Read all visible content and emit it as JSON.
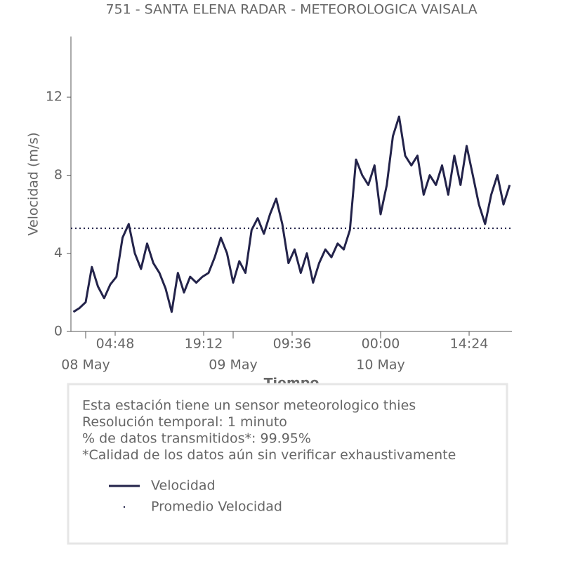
{
  "chart_data": {
    "type": "line",
    "title": "751 - SANTA ELENA RADAR - METEOROLOGICA VAISALA",
    "x_label": "Tiempo",
    "y_label": "Velocidad (m/s)",
    "x": [
      "07 May 22:00",
      "07 May 23:00",
      "08 May 00:00",
      "08 May 01:00",
      "08 May 02:00",
      "08 May 03:00",
      "08 May 04:00",
      "08 May 05:00",
      "08 May 06:00",
      "08 May 07:00",
      "08 May 08:00",
      "08 May 09:00",
      "08 May 10:00",
      "08 May 11:00",
      "08 May 12:00",
      "08 May 13:00",
      "08 May 14:00",
      "08 May 15:00",
      "08 May 16:00",
      "08 May 17:00",
      "08 May 18:00",
      "08 May 19:00",
      "08 May 20:00",
      "08 May 21:00",
      "08 May 22:00",
      "08 May 23:00",
      "09 May 00:00",
      "09 May 01:00",
      "09 May 02:00",
      "09 May 03:00",
      "09 May 04:00",
      "09 May 05:00",
      "09 May 06:00",
      "09 May 07:00",
      "09 May 08:00",
      "09 May 09:00",
      "09 May 10:00",
      "09 May 11:00",
      "09 May 12:00",
      "09 May 13:00",
      "09 May 14:00",
      "09 May 15:00",
      "09 May 16:00",
      "09 May 17:00",
      "09 May 18:00",
      "09 May 19:00",
      "09 May 20:00",
      "09 May 21:00",
      "09 May 22:00",
      "09 May 23:00",
      "10 May 00:00",
      "10 May 01:00",
      "10 May 02:00",
      "10 May 03:00",
      "10 May 04:00",
      "10 May 05:00",
      "10 May 06:00",
      "10 May 07:00",
      "10 May 08:00",
      "10 May 09:00",
      "10 May 10:00",
      "10 May 11:00",
      "10 May 12:00",
      "10 May 13:00",
      "10 May 14:00",
      "10 May 15:00",
      "10 May 16:00",
      "10 May 17:00",
      "10 May 18:00",
      "10 May 19:00",
      "10 May 20:00",
      "10 May 21:00"
    ],
    "series": [
      {
        "name": "Velocidad",
        "color": "#23234a",
        "values": [
          1.0,
          1.2,
          1.5,
          3.3,
          2.3,
          1.7,
          2.4,
          2.8,
          4.8,
          5.5,
          4.0,
          3.2,
          4.5,
          3.5,
          3.0,
          2.2,
          1.0,
          3.0,
          2.0,
          2.8,
          2.5,
          2.8,
          3.0,
          3.8,
          4.8,
          4.0,
          2.5,
          3.6,
          3.0,
          5.2,
          5.8,
          5.0,
          6.0,
          6.8,
          5.5,
          3.5,
          4.2,
          3.0,
          4.0,
          2.5,
          3.5,
          4.2,
          3.8,
          4.5,
          4.2,
          5.2,
          8.8,
          8.0,
          7.5,
          8.5,
          6.0,
          7.5,
          10.0,
          11.0,
          9.0,
          8.5,
          9.0,
          7.0,
          8.0,
          7.5,
          8.5,
          7.0,
          9.0,
          7.5,
          9.5,
          8.0,
          6.5,
          5.5,
          7.0,
          8.0,
          6.5,
          7.5
        ]
      }
    ],
    "average": {
      "name": "Promedio Velocidad",
      "value": 5.28,
      "color": "#23234a"
    },
    "xlim": [
      "07 May 21:36",
      "10 May 21:22"
    ],
    "xticks": [
      {
        "value": "08 May 04:48",
        "label": "04:48"
      },
      {
        "value": "08 May 19:12",
        "label": "19:12"
      },
      {
        "value": "09 May 09:36",
        "label": "09:36"
      },
      {
        "value": "10 May 00:00",
        "label": "00:00"
      },
      {
        "value": "10 May 14:24",
        "label": "14:24"
      }
    ],
    "xticks_major": [
      {
        "value": "08 May 00:00",
        "label": "08 May"
      },
      {
        "value": "09 May 00:00",
        "label": "09 May"
      },
      {
        "value": "10 May 00:00",
        "label": "10 May"
      }
    ],
    "ylim": [
      0,
      15.1
    ],
    "yticks": [
      0,
      4,
      8,
      12
    ],
    "notes": [
      "Esta estación tiene un sensor meteorologico thies",
      "Resolución temporal: 1 minuto",
      "% de datos transmitidos*: 99.95%",
      "*Calidad de los datos aún sin verificar exhaustivamente"
    ]
  }
}
